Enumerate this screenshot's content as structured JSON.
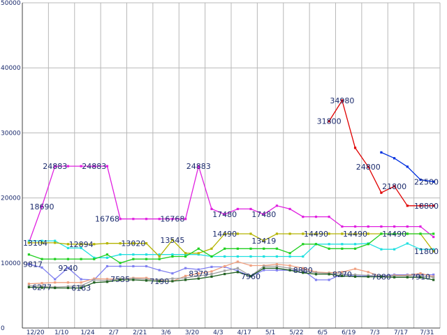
{
  "chart_data": {
    "type": "line",
    "title": "",
    "xlabel": "",
    "ylabel": "",
    "ylim": [
      0,
      50000
    ],
    "y_ticks": [
      0,
      10000,
      20000,
      30000,
      40000,
      50000
    ],
    "y_tick_labels": [
      "0",
      "10000",
      "20000",
      "30000",
      "40000",
      "50000"
    ],
    "x_labels": [
      "12/20",
      "1/10",
      "1/24",
      "2/7",
      "2/21",
      "3/6",
      "3/20",
      "4/3",
      "4/17",
      "5/1",
      "5/22",
      "6/5",
      "6/19",
      "7/3",
      "7/17",
      "7/31"
    ],
    "grid": true,
    "legend": "none",
    "x_points": 32,
    "series": [
      {
        "color": "#e020e0",
        "x": [
          0,
          1,
          2,
          3,
          4,
          5,
          6,
          7,
          8,
          9,
          10,
          11,
          12,
          13,
          14,
          15,
          16,
          17,
          18,
          19,
          20,
          21,
          22,
          23,
          24,
          25,
          26,
          27,
          28,
          29,
          30,
          31
        ],
        "values": [
          13104,
          18690,
          24883,
          24883,
          24883,
          24883,
          24883,
          16768,
          16768,
          16768,
          16768,
          16768,
          16768,
          24883,
          18300,
          17480,
          18300,
          18300,
          17480,
          18800,
          18300,
          17100,
          17100,
          17100,
          15600,
          15600,
          15600,
          15600,
          15600,
          15600,
          15600,
          14000
        ]
      },
      {
        "color": "#20e0e0",
        "x": [
          0,
          1,
          2,
          3,
          4,
          5,
          6,
          7,
          8,
          9,
          10,
          11,
          12,
          13,
          14,
          15,
          16,
          17,
          18,
          19,
          20,
          21,
          22,
          23,
          24,
          25,
          26,
          27,
          28,
          29,
          30,
          31
        ],
        "values": [
          13400,
          13400,
          13400,
          12300,
          12300,
          10800,
          10800,
          11300,
          11300,
          11300,
          11300,
          11300,
          11300,
          11300,
          11000,
          11000,
          11000,
          11000,
          11000,
          11000,
          11000,
          11000,
          12900,
          12900,
          12900,
          12900,
          13000,
          12100,
          12100,
          13000,
          12100,
          12100
        ]
      },
      {
        "color": "#b4b400",
        "x": [
          0,
          1,
          2,
          3,
          4,
          5,
          6,
          7,
          8,
          9,
          10,
          11,
          12,
          13,
          14,
          15,
          16,
          17,
          18,
          19,
          20,
          21,
          22,
          23,
          24,
          25,
          26,
          27,
          28,
          29,
          30,
          31
        ],
        "values": [
          13104,
          13104,
          13104,
          12894,
          12894,
          12894,
          13020,
          13020,
          13020,
          13020,
          11000,
          13545,
          11500,
          11500,
          12200,
          14490,
          14490,
          14490,
          13419,
          14490,
          14490,
          14490,
          14490,
          14490,
          14490,
          14490,
          14490,
          14490,
          14490,
          14490,
          14490,
          11800
        ]
      },
      {
        "color": "#20d020",
        "x": [
          0,
          1,
          2,
          3,
          4,
          5,
          6,
          7,
          8,
          9,
          10,
          11,
          12,
          13,
          14,
          15,
          16,
          17,
          18,
          19,
          20,
          21,
          22,
          23,
          24,
          25,
          26,
          27,
          28,
          29,
          30,
          31
        ],
        "values": [
          11300,
          10600,
          10600,
          10600,
          10600,
          10600,
          11300,
          10000,
          10600,
          10600,
          10600,
          11000,
          11000,
          12200,
          11000,
          12200,
          12200,
          12200,
          12200,
          12200,
          11500,
          12900,
          12900,
          12200,
          12200,
          12200,
          12900,
          14490,
          14490,
          14490,
          14490,
          14490
        ]
      },
      {
        "color": "#8080f0",
        "x": [
          0,
          1,
          2,
          3,
          4,
          5,
          6,
          7,
          8,
          9,
          10,
          11,
          12,
          13,
          14,
          15,
          16,
          17,
          18,
          19,
          20,
          21,
          22,
          23,
          24,
          25,
          26,
          27,
          28,
          29,
          30,
          31
        ],
        "values": [
          9817,
          9300,
          7500,
          9240,
          7500,
          7400,
          9500,
          9500,
          9500,
          9500,
          8900,
          8400,
          9200,
          9000,
          9400,
          9400,
          8800,
          7960,
          8900,
          8880,
          8880,
          8880,
          7400,
          7400,
          8270,
          8000,
          8000,
          8000,
          8200,
          8200,
          8200,
          8200
        ]
      },
      {
        "color": "#f0a080",
        "x": [
          0,
          1,
          2,
          3,
          4,
          5,
          6,
          7,
          8,
          9,
          10,
          11,
          12,
          13,
          14,
          15,
          16,
          17,
          18,
          19,
          20,
          21,
          22,
          23,
          24,
          25,
          26,
          27,
          28,
          29,
          30,
          31
        ],
        "values": [
          6800,
          6900,
          7000,
          7000,
          7000,
          7600,
          7535,
          7535,
          7700,
          7700,
          7300,
          7190,
          8000,
          8379,
          8700,
          9500,
          10200,
          9600,
          9600,
          9800,
          9600,
          9200,
          8600,
          8500,
          8600,
          9100,
          8600,
          7880,
          8100,
          8100,
          8400,
          7910
        ]
      },
      {
        "color": "#a0a0a0",
        "x": [
          0,
          1,
          2,
          3,
          4,
          5,
          6,
          7,
          8,
          9,
          10,
          11,
          12,
          13,
          14,
          15,
          16,
          17,
          18,
          19,
          20,
          21,
          22,
          23,
          24,
          25,
          26,
          27,
          28,
          29,
          30,
          31
        ],
        "values": [
          6500,
          6400,
          6300,
          6400,
          6500,
          7400,
          7300,
          7600,
          7600,
          7500,
          7400,
          7600,
          7700,
          8000,
          8300,
          8800,
          9200,
          8000,
          9500,
          9500,
          9200,
          8800,
          8500,
          8400,
          8300,
          8200,
          8100,
          8000,
          8000,
          8000,
          8000,
          7800
        ]
      },
      {
        "color": "#206020",
        "x": [
          0,
          1,
          2,
          3,
          4,
          5,
          6,
          7,
          8,
          9,
          10,
          11,
          12,
          13,
          14,
          15,
          16,
          17,
          18,
          19,
          20,
          21,
          22,
          23,
          24,
          25,
          26,
          27,
          28,
          29,
          30,
          31
        ],
        "values": [
          6277,
          6200,
          6163,
          6163,
          6163,
          7000,
          7100,
          7400,
          7400,
          7300,
          7190,
          7200,
          7400,
          7600,
          7900,
          8300,
          8600,
          7960,
          9200,
          9200,
          8880,
          8500,
          8270,
          8270,
          8000,
          7900,
          7880,
          7880,
          7800,
          7800,
          7800,
          7400
        ]
      },
      {
        "color": "#e00000",
        "x": [
          23,
          24,
          25,
          26,
          27,
          28,
          29,
          30,
          31
        ],
        "values": [
          31800,
          34980,
          27700,
          24800,
          20800,
          21800,
          18800,
          18800,
          18800
        ]
      },
      {
        "color": "#0030e0",
        "x": [
          27,
          28,
          29,
          30,
          31
        ],
        "values": [
          27000,
          26100,
          24800,
          22800,
          22500
        ]
      }
    ],
    "annotations": [
      {
        "text": "24883",
        "x": 2,
        "y": 24883
      },
      {
        "text": "24883",
        "x": 5,
        "y": 24883
      },
      {
        "text": "24883",
        "x": 13,
        "y": 24883
      },
      {
        "text": "18690",
        "x": 1,
        "y": 18690
      },
      {
        "text": "13104",
        "x": 0,
        "y": 13104
      },
      {
        "text": "12894",
        "x": 4,
        "y": 12894
      },
      {
        "text": "13020",
        "x": 8,
        "y": 13020
      },
      {
        "text": "13545",
        "x": 11,
        "y": 13545
      },
      {
        "text": "16768",
        "x": 6,
        "y": 16768
      },
      {
        "text": "16768",
        "x": 11,
        "y": 16768
      },
      {
        "text": "17480",
        "x": 15,
        "y": 17480
      },
      {
        "text": "17480",
        "x": 18,
        "y": 17480
      },
      {
        "text": "14490",
        "x": 15,
        "y": 14490
      },
      {
        "text": "13419",
        "x": 18,
        "y": 13419
      },
      {
        "text": "14490",
        "x": 22,
        "y": 14490
      },
      {
        "text": "14490",
        "x": 25,
        "y": 14490
      },
      {
        "text": "14490",
        "x": 28,
        "y": 14490
      },
      {
        "text": "9817",
        "x": 0,
        "y": 9817
      },
      {
        "text": "9240",
        "x": 3,
        "y": 9240
      },
      {
        "text": "6277",
        "x": 1,
        "y": 6277
      },
      {
        "text": "6163",
        "x": 4,
        "y": 6163
      },
      {
        "text": "7535",
        "x": 7,
        "y": 7535
      },
      {
        "text": "7190",
        "x": 10,
        "y": 7190
      },
      {
        "text": "8379",
        "x": 13,
        "y": 8379
      },
      {
        "text": "7960",
        "x": 17,
        "y": 7960
      },
      {
        "text": "8880",
        "x": 21,
        "y": 8880
      },
      {
        "text": "8270",
        "x": 24,
        "y": 8270
      },
      {
        "text": "7880",
        "x": 27,
        "y": 7880
      },
      {
        "text": "7910",
        "x": 30,
        "y": 7910
      },
      {
        "text": "31800",
        "x": 23,
        "y": 31800
      },
      {
        "text": "34980",
        "x": 24,
        "y": 34980
      },
      {
        "text": "24800",
        "x": 26,
        "y": 24800
      },
      {
        "text": "21800",
        "x": 28,
        "y": 21800
      },
      {
        "text": "22500",
        "x": 31,
        "y": 22500
      },
      {
        "text": "18800",
        "x": 31,
        "y": 18800
      },
      {
        "text": "11800",
        "x": 31,
        "y": 11800
      }
    ]
  }
}
